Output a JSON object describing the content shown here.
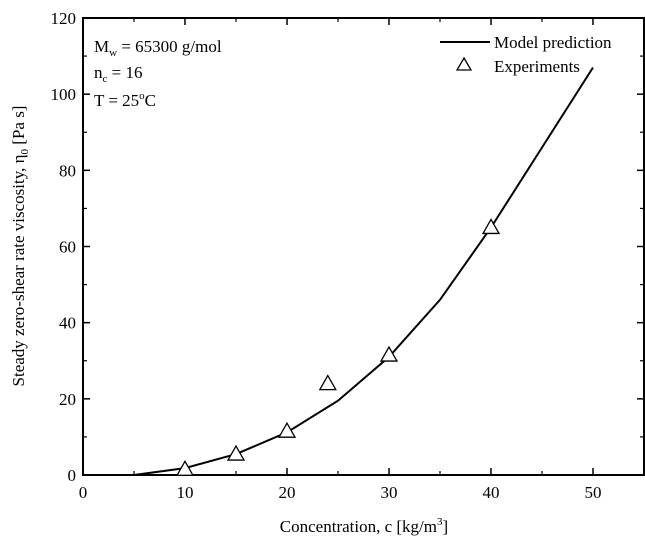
{
  "chart_data": {
    "type": "line",
    "title": "",
    "xlabel": "Concentration, c [kg/m",
    "xlabel_sup": "3",
    "xlabel_end": "]",
    "ylabel": "Steady zero-shear rate viscosity, η",
    "ylabel_sub": "0",
    "ylabel_end": " [Pa s]",
    "xlim": [
      0,
      55
    ],
    "ylim": [
      0,
      120
    ],
    "xticks": [
      0,
      10,
      20,
      30,
      40,
      50
    ],
    "yticks": [
      0,
      20,
      40,
      60,
      80,
      100,
      120
    ],
    "grid": false,
    "legend_position": "top-right",
    "annotations": [
      {
        "base": "M",
        "sub": "w",
        "rest": " = 65300 g/mol"
      },
      {
        "base": "n",
        "sub": "c",
        "rest": " = 16"
      },
      {
        "base": "T = 25",
        "sup": "o",
        "rest": "C"
      }
    ],
    "series": [
      {
        "name": "Model prediction",
        "style": "line",
        "x": [
          5,
          10,
          15,
          20,
          25,
          30,
          35,
          40,
          45,
          50
        ],
        "y": [
          0,
          1.8,
          5.5,
          11.2,
          19.5,
          31.0,
          46.0,
          65.0,
          86.0,
          107.0
        ]
      },
      {
        "name": "Experiments",
        "style": "open-triangle",
        "x": [
          10,
          15,
          20,
          24,
          30,
          40
        ],
        "y": [
          1.5,
          5.5,
          11.5,
          24.0,
          31.5,
          65.0
        ]
      }
    ]
  }
}
